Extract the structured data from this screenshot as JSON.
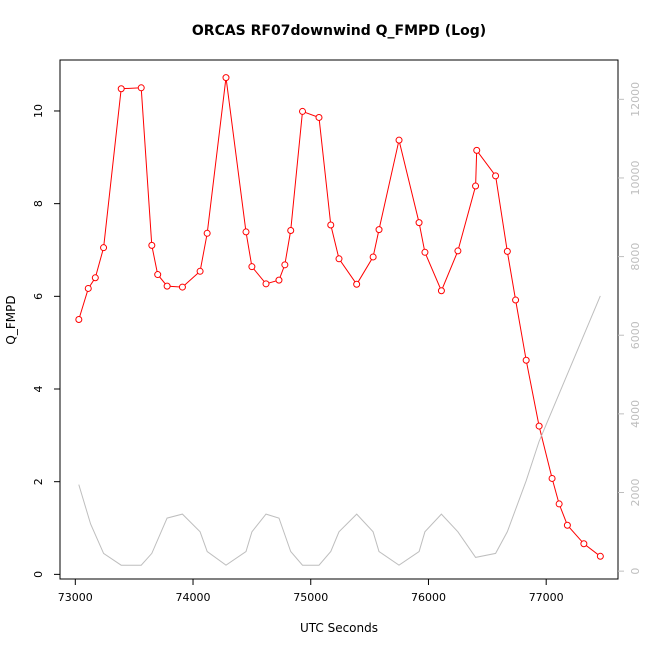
{
  "chart_data": {
    "type": "line",
    "title": "ORCAS RF07downwind Q_FMPD (Log)",
    "xlabel": "UTC Seconds",
    "ylabel": "Q_FMPD",
    "xlim": [
      72870,
      77610
    ],
    "ylim": [
      -0.1,
      11.1
    ],
    "y2lim": [
      -200,
      13000
    ],
    "x_ticks": [
      73000,
      74000,
      75000,
      76000,
      77000
    ],
    "y_ticks": [
      0,
      2,
      4,
      6,
      8,
      10
    ],
    "y2_ticks": [
      0,
      2000,
      4000,
      6000,
      8000,
      10000,
      12000
    ],
    "grid": false,
    "colors": {
      "primary": "#ff0000",
      "secondary": "#bebebe",
      "axis": "#000000"
    },
    "series": [
      {
        "axis": "left",
        "style": "line+markers",
        "points": [
          [
            73030,
            5.5
          ],
          [
            73110,
            6.17
          ],
          [
            73170,
            6.4
          ],
          [
            73240,
            7.05
          ],
          [
            73390,
            10.48
          ],
          [
            73560,
            10.5
          ],
          [
            73650,
            7.1
          ],
          [
            73700,
            6.47
          ],
          [
            73780,
            6.22
          ],
          [
            73910,
            6.2
          ],
          [
            74060,
            6.54
          ],
          [
            74120,
            7.36
          ],
          [
            74280,
            10.72
          ],
          [
            74450,
            7.39
          ],
          [
            74500,
            6.64
          ],
          [
            74620,
            6.27
          ],
          [
            74730,
            6.35
          ],
          [
            74780,
            6.68
          ],
          [
            74830,
            7.42
          ],
          [
            74930,
            9.99
          ],
          [
            75070,
            9.86
          ],
          [
            75170,
            7.54
          ],
          [
            75240,
            6.81
          ],
          [
            75390,
            6.26
          ],
          [
            75530,
            6.85
          ],
          [
            75580,
            7.44
          ],
          [
            75750,
            9.37
          ],
          [
            75920,
            7.59
          ],
          [
            75970,
            6.95
          ],
          [
            76110,
            6.12
          ],
          [
            76250,
            6.98
          ],
          [
            76400,
            8.38
          ],
          [
            76410,
            9.15
          ],
          [
            76570,
            8.6
          ],
          [
            76670,
            6.97
          ],
          [
            76740,
            5.92
          ],
          [
            76830,
            4.62
          ],
          [
            76940,
            3.2
          ],
          [
            77050,
            2.07
          ],
          [
            77110,
            1.52
          ],
          [
            77180,
            1.06
          ],
          [
            77320,
            0.66
          ],
          [
            77460,
            0.39
          ]
        ]
      },
      {
        "axis": "right",
        "style": "line",
        "points": [
          [
            73030,
            2200
          ],
          [
            73130,
            1200
          ],
          [
            73240,
            450
          ],
          [
            73390,
            150
          ],
          [
            73560,
            150
          ],
          [
            73650,
            450
          ],
          [
            73780,
            1350
          ],
          [
            73910,
            1450
          ],
          [
            74060,
            1000
          ],
          [
            74120,
            500
          ],
          [
            74280,
            150
          ],
          [
            74450,
            500
          ],
          [
            74500,
            1000
          ],
          [
            74620,
            1450
          ],
          [
            74730,
            1350
          ],
          [
            74830,
            500
          ],
          [
            74930,
            150
          ],
          [
            75070,
            150
          ],
          [
            75170,
            500
          ],
          [
            75240,
            1000
          ],
          [
            75390,
            1450
          ],
          [
            75530,
            1000
          ],
          [
            75580,
            500
          ],
          [
            75750,
            150
          ],
          [
            75920,
            500
          ],
          [
            75970,
            1000
          ],
          [
            76110,
            1450
          ],
          [
            76250,
            1000
          ],
          [
            76400,
            350
          ],
          [
            76570,
            450
          ],
          [
            76670,
            1000
          ],
          [
            76830,
            2300
          ],
          [
            76940,
            3300
          ],
          [
            77460,
            7000
          ]
        ]
      }
    ]
  }
}
